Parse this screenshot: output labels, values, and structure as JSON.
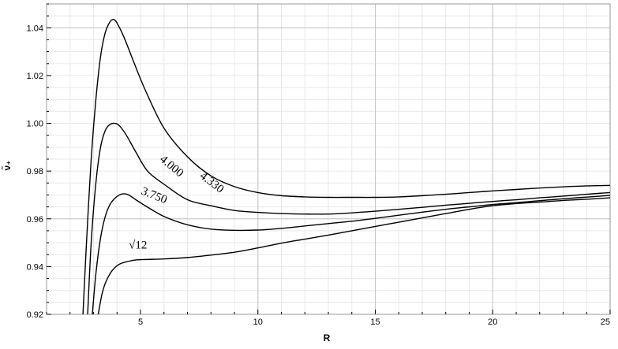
{
  "chart_data": {
    "type": "line",
    "title": "",
    "xlabel": "R",
    "ylabel": "ν̃₊",
    "xlim": [
      1,
      25
    ],
    "ylim": [
      0.92,
      1.05
    ],
    "x_ticks": [
      5,
      10,
      15,
      20,
      25
    ],
    "y_ticks": [
      0.92,
      0.94,
      0.96,
      0.98,
      1.0,
      1.02,
      1.04
    ],
    "x_tick_labels": [
      "5",
      "10",
      "15",
      "20",
      "25"
    ],
    "y_tick_labels": [
      "0.92",
      "0.94",
      "0.96",
      "0.98",
      "1.00",
      "1.02",
      "1.04"
    ],
    "grid": true,
    "series": [
      {
        "label_text": "4.330",
        "label_at": [
          7.5,
          0.9775
        ],
        "label_angle": 38,
        "x": [
          2.55,
          2.7,
          2.9,
          3.1,
          3.3,
          3.5,
          3.7,
          3.85,
          4.0,
          4.3,
          4.7,
          5.2,
          6.0,
          7.0,
          8.0,
          9.0,
          10.0,
          11.0,
          12.0,
          13.0,
          14.0,
          15.0,
          16.0,
          17.0,
          18.0,
          19.0,
          20.0,
          21.0,
          22.0,
          23.0,
          24.0,
          25.0
        ],
        "y": [
          0.92,
          0.95,
          0.985,
          1.01,
          1.028,
          1.038,
          1.0425,
          1.0435,
          1.042,
          1.036,
          1.026,
          1.014,
          0.998,
          0.986,
          0.978,
          0.9735,
          0.971,
          0.9697,
          0.9692,
          0.969,
          0.969,
          0.969,
          0.9692,
          0.9697,
          0.9703,
          0.971,
          0.9717,
          0.9723,
          0.9729,
          0.9734,
          0.9738,
          0.974
        ]
      },
      {
        "label_text": "4.000",
        "label_at": [
          5.8,
          0.9845
        ],
        "label_angle": 40,
        "x": [
          2.75,
          2.9,
          3.1,
          3.3,
          3.5,
          3.7,
          3.9,
          4.1,
          4.4,
          4.8,
          5.3,
          6.0,
          7.0,
          8.0,
          9.0,
          10.0,
          11.0,
          12.0,
          13.0,
          14.0,
          15.0,
          16.0,
          17.0,
          18.0,
          19.0,
          20.0,
          21.0,
          22.0,
          23.0,
          24.0,
          25.0
        ],
        "y": [
          0.92,
          0.95,
          0.975,
          0.99,
          0.997,
          0.9995,
          1.0,
          0.999,
          0.995,
          0.988,
          0.98,
          0.9745,
          0.968,
          0.9655,
          0.9635,
          0.9627,
          0.9622,
          0.962,
          0.962,
          0.9625,
          0.9632,
          0.964,
          0.9648,
          0.9657,
          0.9665,
          0.9673,
          0.968,
          0.9688,
          0.9695,
          0.9703,
          0.971
        ]
      },
      {
        "label_text": "3.750",
        "label_at": [
          5.0,
          0.9705
        ],
        "label_angle": 22,
        "x": [
          2.95,
          3.1,
          3.3,
          3.5,
          3.7,
          3.9,
          4.1,
          4.3,
          4.5,
          4.8,
          5.2,
          6.0,
          7.0,
          8.0,
          9.0,
          10.0,
          11.0,
          12.0,
          13.0,
          14.0,
          15.0,
          16.0,
          17.0,
          18.0,
          19.0,
          20.0,
          21.0,
          22.0,
          23.0,
          24.0,
          25.0
        ],
        "y": [
          0.92,
          0.937,
          0.952,
          0.961,
          0.966,
          0.9685,
          0.97,
          0.9705,
          0.97,
          0.968,
          0.9655,
          0.961,
          0.9575,
          0.9557,
          0.9552,
          0.9553,
          0.956,
          0.957,
          0.958,
          0.959,
          0.9602,
          0.9615,
          0.9628,
          0.964,
          0.965,
          0.966,
          0.9668,
          0.9676,
          0.9684,
          0.9691,
          0.9698
        ]
      },
      {
        "label_text": "√12",
        "label_at": [
          4.5,
          0.9475
        ],
        "label_angle": 0,
        "x": [
          3.2,
          3.35,
          3.5,
          3.7,
          3.9,
          4.1,
          4.4,
          4.8,
          5.3,
          6.0,
          7.0,
          8.0,
          9.0,
          10.0,
          11.0,
          12.0,
          13.0,
          14.0,
          15.0,
          16.0,
          17.0,
          18.0,
          19.0,
          20.0,
          21.0,
          22.0,
          23.0,
          24.0,
          25.0
        ],
        "y": [
          0.92,
          0.928,
          0.933,
          0.937,
          0.9395,
          0.941,
          0.942,
          0.9428,
          0.943,
          0.9432,
          0.9438,
          0.9448,
          0.946,
          0.9478,
          0.9498,
          0.9515,
          0.9532,
          0.955,
          0.9568,
          0.9586,
          0.9604,
          0.9622,
          0.964,
          0.9655,
          0.9664,
          0.967,
          0.9677,
          0.9682,
          0.9688
        ]
      }
    ]
  }
}
